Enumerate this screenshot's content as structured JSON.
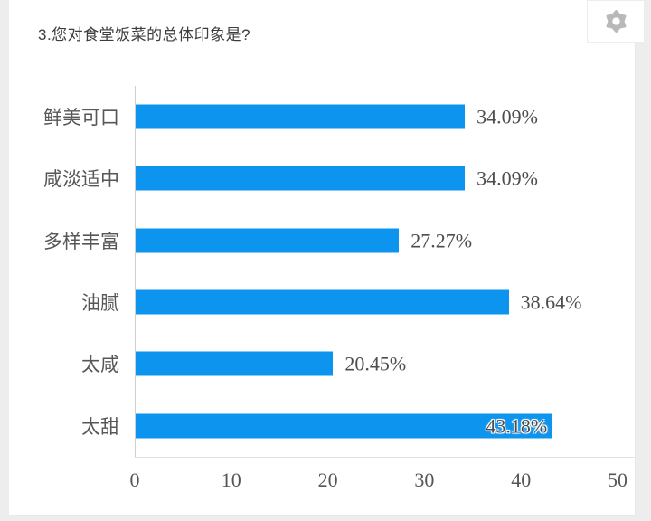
{
  "header": {
    "title": "3.您对食堂饭菜的总体印象是?",
    "settings_icon": "gear-icon"
  },
  "colors": {
    "bar": "#0d94ee",
    "axis_line": "#dde4ea",
    "gear": "#b9b9b9",
    "page_background": "#ededed",
    "card_background": "#ffffff"
  },
  "chart_data": {
    "type": "bar",
    "orientation": "horizontal",
    "title": "3.您对食堂饭菜的总体印象是?",
    "categories": [
      "鲜美可口",
      "咸淡适中",
      "多样丰富",
      "油腻",
      "太咸",
      "太甜"
    ],
    "values": [
      34.09,
      34.09,
      27.27,
      38.64,
      20.45,
      43.18
    ],
    "value_labels": [
      "34.09%",
      "34.09%",
      "27.27%",
      "38.64%",
      "20.45%",
      "43.18%"
    ],
    "last_label_inside_bar": true,
    "xlabel": "",
    "ylabel": "",
    "xlim": [
      0,
      50
    ],
    "x_ticks": [
      0,
      10,
      20,
      30,
      40,
      50
    ],
    "grid": false,
    "legend": false,
    "bar_color": "#0d94ee"
  }
}
